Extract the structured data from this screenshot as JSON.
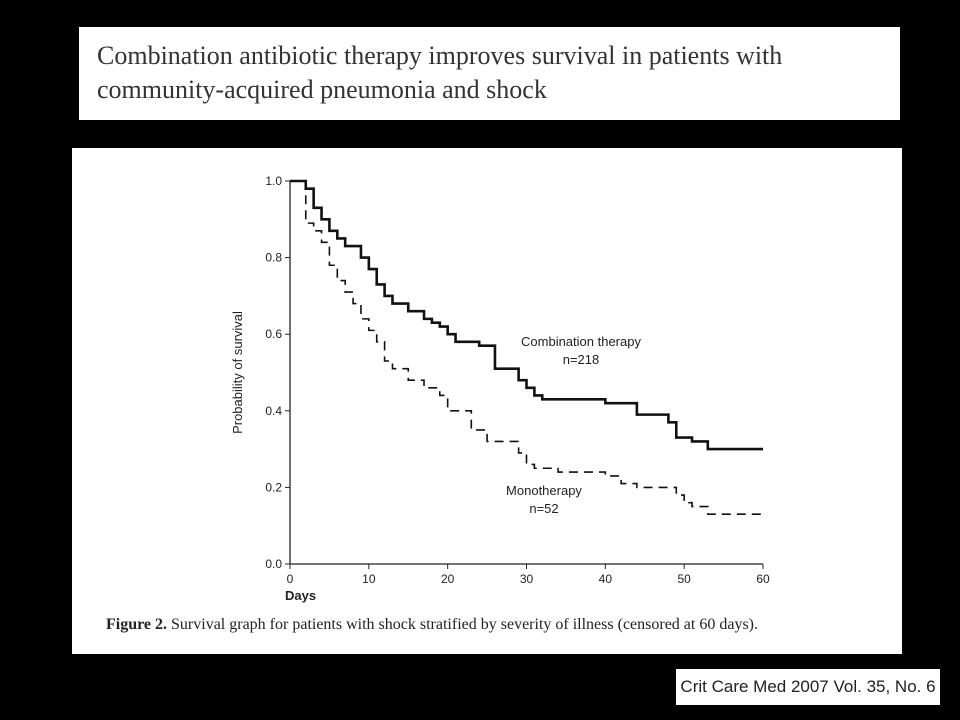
{
  "slide": {
    "title_line1": "Combination antibiotic therapy improves survival in patients with",
    "title_line2": "community-acquired pneumonia and shock",
    "caption_label": "Figure 2.",
    "caption_text": " Survival graph for patients with shock stratified by severity of illness (censored at 60 days).",
    "citation": "Crit Care Med 2007 Vol. 35, No. 6"
  },
  "chart_data": {
    "type": "line",
    "step": true,
    "xlabel": "Days",
    "ylabel": "Probability of survival",
    "xlim": [
      0,
      60
    ],
    "ylim": [
      0,
      1.0
    ],
    "x_ticks": [
      0,
      10,
      20,
      30,
      40,
      50,
      60
    ],
    "y_ticks": [
      "0.0",
      "0.2",
      "0.4",
      "0.6",
      "0.8",
      "1.0"
    ],
    "grid": false,
    "series": [
      {
        "name": "Combination therapy",
        "n_label": "n=218",
        "style": "solid",
        "color": "#111111",
        "x": [
          0,
          2,
          3,
          4,
          5,
          6,
          7,
          9,
          10,
          11,
          12,
          13,
          15,
          17,
          18,
          19,
          20,
          21,
          24,
          26,
          29,
          30,
          31,
          32,
          40,
          44,
          48,
          49,
          51,
          53,
          60
        ],
        "y": [
          1.0,
          0.98,
          0.93,
          0.9,
          0.87,
          0.85,
          0.83,
          0.8,
          0.77,
          0.73,
          0.7,
          0.68,
          0.66,
          0.64,
          0.63,
          0.62,
          0.6,
          0.58,
          0.57,
          0.51,
          0.48,
          0.46,
          0.44,
          0.43,
          0.42,
          0.39,
          0.37,
          0.33,
          0.32,
          0.3,
          0.3
        ]
      },
      {
        "name": "Monotherapy",
        "n_label": "n=52",
        "style": "dashed",
        "color": "#111111",
        "x": [
          0,
          2,
          3,
          4,
          5,
          6,
          7,
          8,
          9,
          10,
          11,
          12,
          13,
          15,
          17,
          19,
          20,
          23,
          25,
          29,
          30,
          31,
          34,
          40,
          42,
          44,
          49,
          50,
          51,
          53,
          60
        ],
        "y": [
          1.0,
          0.89,
          0.87,
          0.84,
          0.78,
          0.74,
          0.71,
          0.68,
          0.64,
          0.61,
          0.58,
          0.53,
          0.51,
          0.48,
          0.46,
          0.44,
          0.4,
          0.35,
          0.32,
          0.29,
          0.26,
          0.25,
          0.24,
          0.23,
          0.21,
          0.2,
          0.18,
          0.16,
          0.15,
          0.13,
          0.13
        ]
      }
    ]
  }
}
